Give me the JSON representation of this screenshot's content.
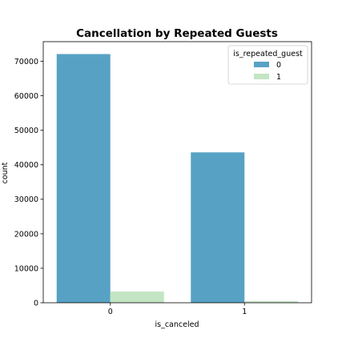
{
  "chart_data": {
    "type": "bar",
    "title": "Cancellation by Repeated Guests",
    "xlabel": "is_canceled",
    "ylabel": "count",
    "categories": [
      "0",
      "1"
    ],
    "series": [
      {
        "name": "0",
        "values": [
          72100,
          43600
        ],
        "color": "#57a2c4"
      },
      {
        "name": "1",
        "values": [
          3260,
          450
        ],
        "color": "#c3e5c3"
      }
    ],
    "ylim": [
      0,
      75700
    ],
    "yticks": [
      0,
      10000,
      20000,
      30000,
      40000,
      50000,
      60000,
      70000
    ],
    "ytick_labels": [
      "0",
      "10000",
      "20000",
      "30000",
      "40000",
      "50000",
      "60000",
      "70000"
    ],
    "legend": {
      "title": "is_repeated_guest",
      "placement": "top-right"
    },
    "grid": false
  }
}
